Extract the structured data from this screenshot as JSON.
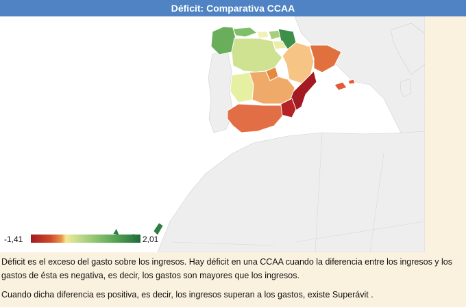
{
  "header": {
    "title": "Déficit: Comparativa CCAA"
  },
  "legend": {
    "min_label": "-1,41",
    "max_label": "2,01"
  },
  "description": {
    "p1": "Déficit es el exceso del gasto sobre los ingresos. Hay déficit en una CCAA cuando la diferencia entre los ingresos y los gastos de ésta es negativa, es decir, los gastos son mayores que los ingresos.",
    "p2": "Cuando dicha diferencia es positiva, es decir, los ingresos superan a los gastos, existe Superávit ."
  },
  "colors": {
    "header_bg": "#4f83c4",
    "page_bg": "#fbf1df",
    "land_gray": "#eeeeee",
    "scale_low": "#a31a22",
    "scale_mid": "#f5e792",
    "scale_high": "#1e6b3a"
  }
}
